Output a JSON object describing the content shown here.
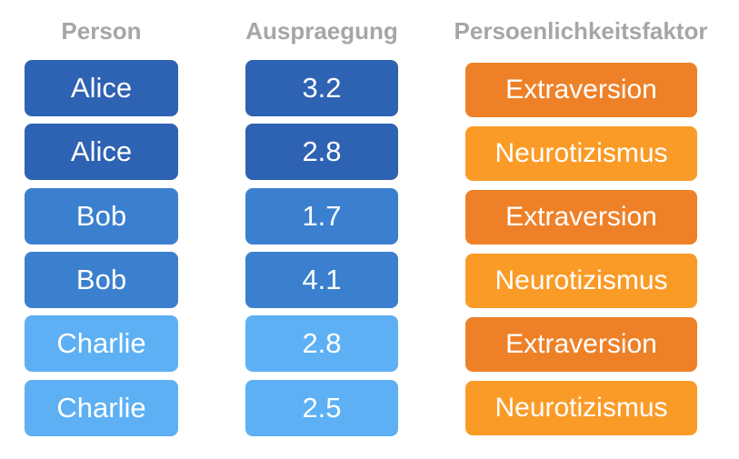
{
  "headers": {
    "person": "Person",
    "auspraegung": "Auspraegung",
    "faktor": "Persoenlichkeitsfaktor"
  },
  "rows": [
    {
      "person": "Alice",
      "value": "3.2",
      "factor": "Extraversion"
    },
    {
      "person": "Alice",
      "value": "2.8",
      "factor": "Neurotizismus"
    },
    {
      "person": "Bob",
      "value": "1.7",
      "factor": "Extraversion"
    },
    {
      "person": "Bob",
      "value": "4.1",
      "factor": "Neurotizismus"
    },
    {
      "person": "Charlie",
      "value": "2.8",
      "factor": "Extraversion"
    },
    {
      "person": "Charlie",
      "value": "2.5",
      "factor": "Neurotizismus"
    }
  ],
  "colors": {
    "header_text": "#a6a6a6",
    "alice": "#2e62b2",
    "bob": "#3b80cf",
    "charlie": "#5db0f4",
    "extraversion": "#ee8128",
    "neurotizismus": "#fb9b27",
    "box_text": "#ffffff"
  }
}
